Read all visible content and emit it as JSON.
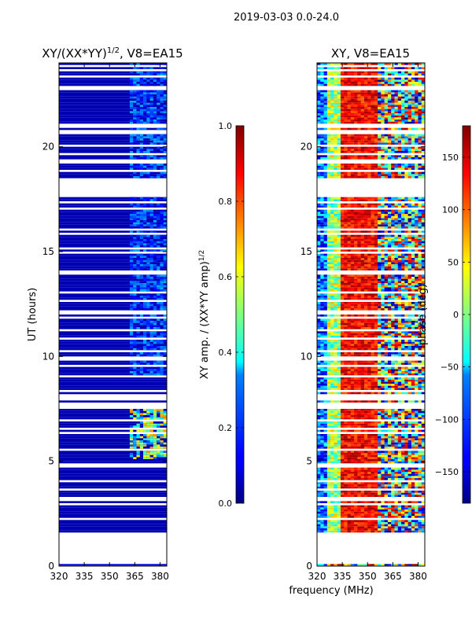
{
  "figure": {
    "suptitle": "2019-03-03 0.0-24.0",
    "xlabel_shared": "frequency (MHz)"
  },
  "chart_data": [
    {
      "type": "heatmap",
      "title": "XY/(XX*YY)",
      "title_superscript": "1/2",
      "title_suffix": ", V8=EA15",
      "xlabel": "",
      "ylabel": "UT (hours)",
      "xlim": [
        320,
        384
      ],
      "ylim": [
        0,
        24
      ],
      "xticks": [
        320,
        335,
        350,
        365,
        380
      ],
      "yticks": [
        0,
        5,
        10,
        15,
        20
      ],
      "colorbar": {
        "label": "XY amp. / (XX*YY amp)",
        "label_superscript": "1/2",
        "range": [
          0.0,
          1.0
        ],
        "ticks": [
          "0.0",
          "0.2",
          "0.4",
          "0.6",
          "0.8",
          "1.0"
        ],
        "colormap": "jet"
      },
      "data_coverage_hours": [
        1.6,
        24.0
      ],
      "baseline_value": 0.05,
      "elevated_regions": [
        {
          "freq_range": [
            362,
            383
          ],
          "time_range": [
            5.0,
            7.4
          ],
          "value_range": [
            0.2,
            0.75
          ]
        },
        {
          "freq_range": [
            362,
            380
          ],
          "time_range": [
            13.5,
            14.0
          ],
          "value_range": [
            0.3,
            0.6
          ]
        },
        {
          "freq_range": [
            362,
            382
          ],
          "time_range": [
            9.0,
            24.0
          ],
          "value_range": [
            0.1,
            0.3
          ]
        }
      ]
    },
    {
      "type": "heatmap",
      "title": "XY, V8=EA15",
      "xlabel": "",
      "ylabel": "",
      "xlim": [
        320,
        384
      ],
      "ylim": [
        0,
        24
      ],
      "xticks": [
        320,
        335,
        350,
        365,
        380
      ],
      "yticks": [
        0,
        5,
        10,
        15,
        20
      ],
      "colorbar": {
        "label": "phase (deg)",
        "range": [
          -180,
          180
        ],
        "ticks": [
          "150",
          "100",
          "50",
          "0",
          "−50",
          "−100",
          "−150"
        ],
        "colormap": "jet"
      },
      "data_coverage_hours": [
        1.6,
        24.0
      ],
      "phase_pattern": "low phase near 320 MHz rising to high phase around 335-355 MHz, mixed phases 355-384 MHz"
    }
  ]
}
